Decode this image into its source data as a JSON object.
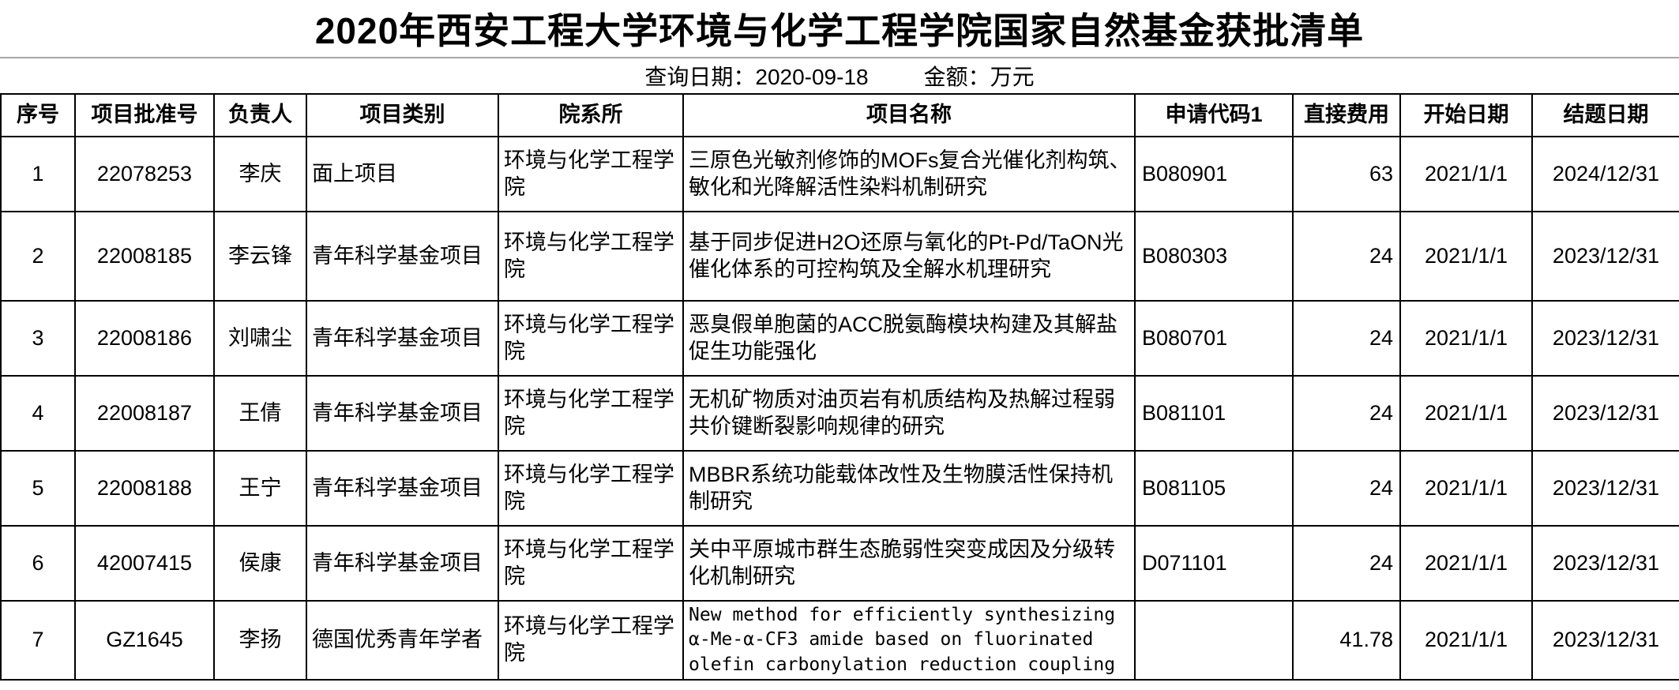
{
  "page": {
    "title": "2020年西安工程大学环境与化学工程学院国家自然基金获批清单",
    "query_date_label": "查询日期：",
    "query_date_value": "2020-09-18",
    "amount_label": "金额：",
    "amount_unit": "万元"
  },
  "table": {
    "columns": [
      "序号",
      "项目批准号",
      "负责人",
      "项目类别",
      "院系所",
      "项目名称",
      "申请代码1",
      "直接费用",
      "开始日期",
      "结题日期"
    ],
    "rows": [
      [
        "1",
        "22078253",
        "李庆",
        "面上项目",
        "环境与化学工程学院",
        "三原色光敏剂修饰的MOFs复合光催化剂构筑、敏化和光降解活性染料机制研究",
        "B080901",
        "63",
        "2021/1/1",
        "2024/12/31"
      ],
      [
        "2",
        "22008185",
        "李云锋",
        "青年科学基金项目",
        "环境与化学工程学院",
        "基于同步促进H2O还原与氧化的Pt-Pd/TaON光催化体系的可控构筑及全解水机理研究",
        "B080303",
        "24",
        "2021/1/1",
        "2023/12/31"
      ],
      [
        "3",
        "22008186",
        "刘啸尘",
        "青年科学基金项目",
        "环境与化学工程学院",
        "恶臭假单胞菌的ACC脱氨酶模块构建及其解盐促生功能强化",
        "B080701",
        "24",
        "2021/1/1",
        "2023/12/31"
      ],
      [
        "4",
        "22008187",
        "王倩",
        "青年科学基金项目",
        "环境与化学工程学院",
        "无机矿物质对油页岩有机质结构及热解过程弱共价键断裂影响规律的研究",
        "B081101",
        "24",
        "2021/1/1",
        "2023/12/31"
      ],
      [
        "5",
        "22008188",
        "王宁",
        "青年科学基金项目",
        "环境与化学工程学院",
        "MBBR系统功能载体改性及生物膜活性保持机制研究",
        "B081105",
        "24",
        "2021/1/1",
        "2023/12/31"
      ],
      [
        "6",
        "42007415",
        "侯康",
        "青年科学基金项目",
        "环境与化学工程学院",
        "关中平原城市群生态脆弱性突变成因及分级转化机制研究",
        "D071101",
        "24",
        "2021/1/1",
        "2023/12/31"
      ],
      [
        "7",
        "GZ1645",
        "李扬",
        "德国优秀青年学者",
        "环境与化学工程学院",
        "New method for efficiently synthesizing α-Me-α-CF3 amide based on fluorinated olefin carbonylation reduction coupling",
        "",
        "41.78",
        "2021/1/1",
        "2023/12/31"
      ]
    ]
  },
  "colors": {
    "border": "#000000",
    "divider": "#a6a6a6",
    "text": "#000000",
    "background": "#ffffff"
  }
}
